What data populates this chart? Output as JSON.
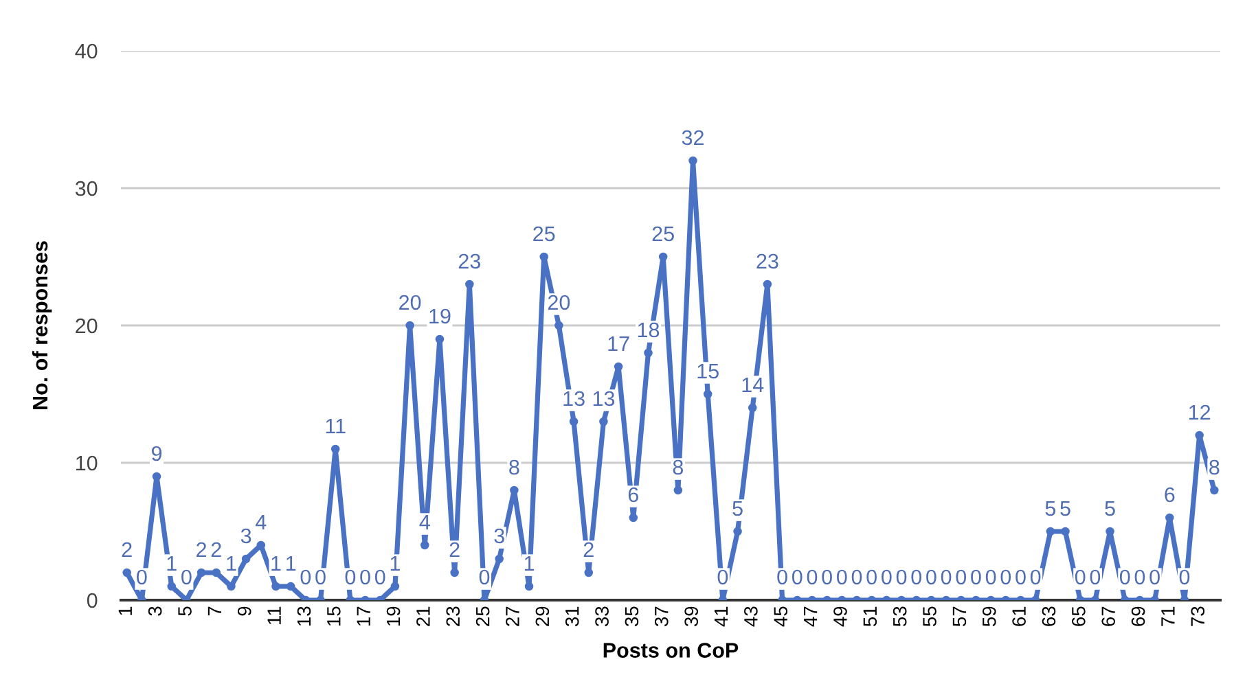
{
  "chart_data": {
    "type": "line",
    "xlabel": "Posts on CoP",
    "ylabel": "No. of responses",
    "categories": [
      "1",
      null,
      "3",
      null,
      "5",
      null,
      "7",
      null,
      "9",
      null,
      "11",
      null,
      "13",
      null,
      "15",
      null,
      "17",
      null,
      "19",
      null,
      "21",
      null,
      "23",
      null,
      "25",
      null,
      "27",
      null,
      "29",
      null,
      "31",
      null,
      "33",
      null,
      "35",
      null,
      "37",
      null,
      "39",
      null,
      "41",
      null,
      "43",
      null,
      "45",
      null,
      "47",
      null,
      "49",
      null,
      "51",
      null,
      "53",
      null,
      "55",
      null,
      "57",
      null,
      "59",
      null,
      "61",
      null,
      "63",
      null,
      "65",
      null,
      "67",
      null,
      "69",
      null,
      "71",
      null,
      "73",
      null
    ],
    "series": [
      {
        "color": "#4a72c4",
        "values": [
          2,
          0,
          9,
          1,
          0,
          2,
          2,
          1,
          3,
          4,
          1,
          1,
          0,
          0,
          11,
          0,
          0,
          0,
          1,
          20,
          4,
          19,
          2,
          23,
          0,
          3,
          8,
          1,
          25,
          20,
          13,
          2,
          13,
          17,
          6,
          18,
          25,
          8,
          32,
          15,
          0,
          5,
          14,
          23,
          0,
          0,
          0,
          0,
          0,
          0,
          0,
          0,
          0,
          0,
          0,
          0,
          0,
          0,
          0,
          0,
          0,
          0,
          5,
          5,
          0,
          0,
          5,
          0,
          0,
          0,
          6,
          0,
          12,
          8
        ]
      }
    ],
    "ylim": [
      0,
      40
    ],
    "yticks": [
      0,
      10,
      20,
      30,
      40
    ],
    "grid": "y",
    "legend": false,
    "marker": "circle",
    "line_style": "solid",
    "data_labels": true
  }
}
